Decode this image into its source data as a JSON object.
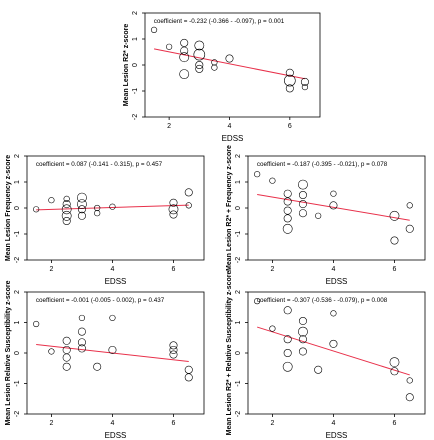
{
  "chart_data": [
    {
      "type": "scatter",
      "annotation": "coefficient = -0.232 (-0.366 - -0.097), p = 0.001",
      "xlabel": "EDSS",
      "ylabel": "Mean Lesion R2* z-score",
      "xlim": [
        1.2,
        7
      ],
      "ylim": [
        -2,
        2
      ],
      "xticks": [
        2,
        4,
        6
      ],
      "yticks": [
        -2,
        -1,
        0,
        1,
        2
      ],
      "regression_line": {
        "x": [
          1.5,
          6.5
        ],
        "y": [
          0.62,
          -0.53
        ]
      },
      "points": [
        {
          "x": 1.5,
          "y": 1.35,
          "size": 2
        },
        {
          "x": 2.0,
          "y": 0.7,
          "size": 2
        },
        {
          "x": 2.5,
          "y": 0.55,
          "size": 3
        },
        {
          "x": 2.5,
          "y": 0.3,
          "size": 4
        },
        {
          "x": 2.5,
          "y": -0.35,
          "size": 4
        },
        {
          "x": 2.5,
          "y": 0.85,
          "size": 3
        },
        {
          "x": 3.0,
          "y": 0.75,
          "size": 4
        },
        {
          "x": 3.0,
          "y": 0.4,
          "size": 5
        },
        {
          "x": 3.0,
          "y": 0.0,
          "size": 3
        },
        {
          "x": 3.0,
          "y": -0.15,
          "size": 3
        },
        {
          "x": 3.5,
          "y": 0.1,
          "size": 2
        },
        {
          "x": 3.5,
          "y": -0.1,
          "size": 2
        },
        {
          "x": 4.0,
          "y": 0.25,
          "size": 3
        },
        {
          "x": 6.0,
          "y": -0.6,
          "size": 5
        },
        {
          "x": 6.0,
          "y": -0.9,
          "size": 3
        },
        {
          "x": 6.0,
          "y": -0.3,
          "size": 3
        },
        {
          "x": 6.5,
          "y": -0.65,
          "size": 3
        },
        {
          "x": 6.5,
          "y": -0.85,
          "size": 2
        }
      ]
    },
    {
      "type": "scatter",
      "annotation": "coefficient = 0.087 (-0.141 - 0.315), p = 0.457",
      "xlabel": "EDSS",
      "ylabel": "Mean Lesion Frequency z-score",
      "xlim": [
        1.2,
        7
      ],
      "ylim": [
        -2,
        2
      ],
      "xticks": [
        2,
        4,
        6
      ],
      "yticks": [
        -2,
        -1,
        0,
        1,
        2
      ],
      "regression_line": {
        "x": [
          1.5,
          6.5
        ],
        "y": [
          -0.07,
          0.11
        ]
      },
      "points": [
        {
          "x": 1.5,
          "y": -0.05,
          "size": 2
        },
        {
          "x": 2.0,
          "y": 0.3,
          "size": 2
        },
        {
          "x": 2.5,
          "y": 0.15,
          "size": 3
        },
        {
          "x": 2.5,
          "y": -0.05,
          "size": 4
        },
        {
          "x": 2.5,
          "y": -0.3,
          "size": 4
        },
        {
          "x": 2.5,
          "y": -0.5,
          "size": 3
        },
        {
          "x": 2.5,
          "y": 0.35,
          "size": 2
        },
        {
          "x": 3.0,
          "y": 0.4,
          "size": 4
        },
        {
          "x": 3.0,
          "y": 0.15,
          "size": 4
        },
        {
          "x": 3.0,
          "y": -0.05,
          "size": 3
        },
        {
          "x": 3.0,
          "y": -0.3,
          "size": 3
        },
        {
          "x": 3.5,
          "y": 0.0,
          "size": 2
        },
        {
          "x": 3.5,
          "y": -0.2,
          "size": 2
        },
        {
          "x": 4.0,
          "y": 0.05,
          "size": 2
        },
        {
          "x": 6.0,
          "y": 0.2,
          "size": 3
        },
        {
          "x": 6.0,
          "y": -0.05,
          "size": 4
        },
        {
          "x": 6.0,
          "y": -0.25,
          "size": 3
        },
        {
          "x": 6.5,
          "y": 0.6,
          "size": 3
        },
        {
          "x": 6.5,
          "y": 0.1,
          "size": 2
        }
      ]
    },
    {
      "type": "scatter",
      "annotation": "coefficient = -0.187 (-0.395 - -0.021), p = 0.078",
      "xlabel": "EDSS",
      "ylabel": "Mean Lesion R2* + Frequency z-score",
      "xlim": [
        1.2,
        7
      ],
      "ylim": [
        -2,
        2
      ],
      "xticks": [
        2,
        4,
        6
      ],
      "yticks": [
        -2,
        -1,
        0,
        1,
        2
      ],
      "regression_line": {
        "x": [
          1.5,
          6.5
        ],
        "y": [
          0.52,
          -0.47
        ]
      },
      "points": [
        {
          "x": 1.5,
          "y": 1.3,
          "size": 2
        },
        {
          "x": 2.0,
          "y": 1.05,
          "size": 2
        },
        {
          "x": 2.5,
          "y": 0.55,
          "size": 3
        },
        {
          "x": 2.5,
          "y": 0.25,
          "size": 3
        },
        {
          "x": 2.5,
          "y": -0.1,
          "size": 3
        },
        {
          "x": 2.5,
          "y": -0.4,
          "size": 3
        },
        {
          "x": 2.5,
          "y": -0.8,
          "size": 4
        },
        {
          "x": 3.0,
          "y": 0.9,
          "size": 4
        },
        {
          "x": 3.0,
          "y": 0.5,
          "size": 3
        },
        {
          "x": 3.0,
          "y": 0.15,
          "size": 3
        },
        {
          "x": 3.0,
          "y": -0.2,
          "size": 3
        },
        {
          "x": 3.5,
          "y": -0.3,
          "size": 2
        },
        {
          "x": 4.0,
          "y": 0.1,
          "size": 3
        },
        {
          "x": 4.0,
          "y": 0.55,
          "size": 2
        },
        {
          "x": 6.0,
          "y": -0.3,
          "size": 4
        },
        {
          "x": 6.0,
          "y": -1.25,
          "size": 3
        },
        {
          "x": 6.5,
          "y": -0.8,
          "size": 3
        },
        {
          "x": 6.5,
          "y": 0.1,
          "size": 2
        }
      ]
    },
    {
      "type": "scatter",
      "annotation": "coefficient = -0.001 (-0.005 - 0.002), p = 0.437",
      "xlabel": "EDSS",
      "ylabel": "Mean Lesion Relative Susceptibility z-score",
      "xlim": [
        1.2,
        7
      ],
      "ylim": [
        -2,
        2
      ],
      "xticks": [
        2,
        4,
        6
      ],
      "yticks": [
        -2,
        -1,
        0,
        1,
        2
      ],
      "regression_line": {
        "x": [
          1.5,
          6.5
        ],
        "y": [
          0.28,
          -0.28
        ]
      },
      "points": [
        {
          "x": 1.5,
          "y": 0.95,
          "size": 2
        },
        {
          "x": 2.0,
          "y": 0.05,
          "size": 2
        },
        {
          "x": 2.5,
          "y": 0.4,
          "size": 3
        },
        {
          "x": 2.5,
          "y": 0.1,
          "size": 3
        },
        {
          "x": 2.5,
          "y": -0.15,
          "size": 3
        },
        {
          "x": 2.5,
          "y": -0.45,
          "size": 3
        },
        {
          "x": 3.0,
          "y": 1.15,
          "size": 2
        },
        {
          "x": 3.0,
          "y": 0.7,
          "size": 3
        },
        {
          "x": 3.0,
          "y": 0.35,
          "size": 3
        },
        {
          "x": 3.0,
          "y": 0.15,
          "size": 3
        },
        {
          "x": 3.5,
          "y": -0.45,
          "size": 3
        },
        {
          "x": 4.0,
          "y": 1.15,
          "size": 2
        },
        {
          "x": 4.0,
          "y": 0.1,
          "size": 3
        },
        {
          "x": 6.0,
          "y": 0.25,
          "size": 3
        },
        {
          "x": 6.0,
          "y": 0.1,
          "size": 3
        },
        {
          "x": 6.0,
          "y": -0.05,
          "size": 3
        },
        {
          "x": 6.5,
          "y": -0.55,
          "size": 3
        },
        {
          "x": 6.5,
          "y": -0.8,
          "size": 3
        }
      ]
    },
    {
      "type": "scatter",
      "annotation": "coefficient = -0.307 (-0.536 - -0.079), p = 0.008",
      "xlabel": "EDSS",
      "ylabel": "Mean Lesion R2* + Relative Susceptibility z-score",
      "xlim": [
        1.2,
        7
      ],
      "ylim": [
        -2,
        2
      ],
      "xticks": [
        2,
        4,
        6
      ],
      "yticks": [
        -2,
        -1,
        0,
        1,
        2
      ],
      "regression_line": {
        "x": [
          1.5,
          6.5
        ],
        "y": [
          0.85,
          -0.72
        ]
      },
      "points": [
        {
          "x": 1.5,
          "y": 1.7,
          "size": 2
        },
        {
          "x": 2.0,
          "y": 0.8,
          "size": 2
        },
        {
          "x": 2.5,
          "y": 1.4,
          "size": 3
        },
        {
          "x": 2.5,
          "y": 0.45,
          "size": 3
        },
        {
          "x": 2.5,
          "y": 0.0,
          "size": 3
        },
        {
          "x": 2.5,
          "y": -0.45,
          "size": 4
        },
        {
          "x": 3.0,
          "y": 1.05,
          "size": 3
        },
        {
          "x": 3.0,
          "y": 0.7,
          "size": 4
        },
        {
          "x": 3.0,
          "y": 0.45,
          "size": 3
        },
        {
          "x": 3.0,
          "y": 0.05,
          "size": 3
        },
        {
          "x": 3.5,
          "y": -0.55,
          "size": 3
        },
        {
          "x": 4.0,
          "y": 1.3,
          "size": 2
        },
        {
          "x": 4.0,
          "y": 0.3,
          "size": 3
        },
        {
          "x": 6.0,
          "y": -0.3,
          "size": 4
        },
        {
          "x": 6.0,
          "y": -0.6,
          "size": 3
        },
        {
          "x": 6.5,
          "y": -1.45,
          "size": 3
        },
        {
          "x": 6.5,
          "y": -0.9,
          "size": 2
        }
      ]
    }
  ],
  "colors": {
    "regression_line": "#e8304a",
    "markers": "#000000",
    "axes": "#000000",
    "background": "#ffffff"
  }
}
